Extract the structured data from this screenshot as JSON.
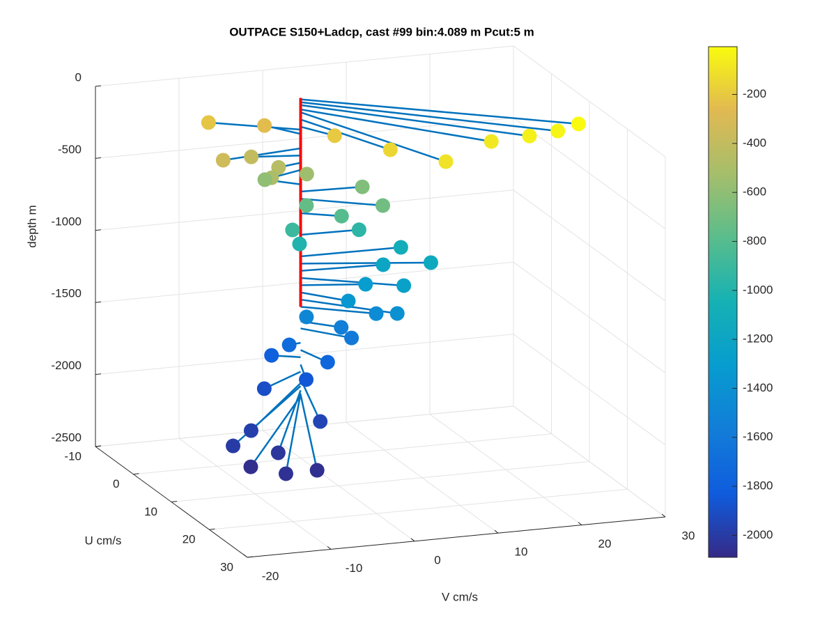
{
  "chart_data": {
    "type": "stem3",
    "title": "OUTPACE S150+Ladcp, cast #99 bin:4.089 m  Pcut:5 m",
    "xlabel": "U cm/s",
    "ylabel": "V cm/s",
    "zlabel": "depth m",
    "xlim": [
      -10,
      30
    ],
    "xticks": [
      -10,
      0,
      10,
      20,
      30
    ],
    "ylim": [
      -20,
      30
    ],
    "yticks": [
      -20,
      -10,
      0,
      10,
      20,
      30
    ],
    "zlim": [
      -2500,
      0
    ],
    "zticks": [
      -2500,
      -2000,
      -1500,
      -1000,
      -500,
      0
    ],
    "grid": true,
    "stem_color": "#0072bd",
    "colormap": "parula",
    "clim": [
      -2090,
      -5
    ],
    "cticks": [
      -2000,
      -1800,
      -1600,
      -1400,
      -1200,
      -1000,
      -800,
      -600,
      -400,
      -200
    ],
    "u": [
      16.4,
      17.1,
      16.9,
      16.1,
      20.2,
      12.4,
      3.9,
      -5.1,
      -3.8,
      1.4,
      -1.1,
      0.8,
      1.6,
      -0.8,
      -2.6,
      0.4,
      4.7,
      0.0,
      2.2,
      0.5,
      0.2,
      0.6,
      0.2,
      3.7,
      0.6,
      5.6,
      1.7,
      4.2,
      7.4,
      4.5,
      1.1,
      3.2,
      4.6,
      0.3,
      4.7,
      -1.5,
      5.0,
      4.3,
      14.2,
      13.6,
      17.0,
      19.2,
      25.2,
      24.6,
      21.0
    ],
    "v": [
      25.8,
      23.0,
      19.7,
      15.5,
      8.2,
      5.1,
      2.3,
      -8.7,
      -2.6,
      -9.9,
      -5.4,
      -3.0,
      -4.2,
      1.1,
      -3.1,
      7.2,
      7.7,
      0.7,
      3.9,
      -1.2,
      6.9,
      -0.4,
      11.9,
      13.9,
      9.6,
      9.8,
      7.0,
      3.8,
      8.2,
      7.0,
      0.2,
      3.4,
      4.0,
      -1.5,
      1.1,
      -2.8,
      -1.6,
      -6.3,
      -4.1,
      -12.1,
      -15.8,
      -11.4,
      -13.2,
      -9.2,
      -15.5
    ],
    "z": [
      -10,
      -30,
      -50,
      -80,
      -100,
      -150,
      -200,
      -220,
      -250,
      -350,
      -400,
      -450,
      -500,
      -550,
      -600,
      -650,
      -700,
      -750,
      -800,
      -900,
      -950,
      -1000,
      -1100,
      -1150,
      -1200,
      -1250,
      -1300,
      -1350,
      -1400,
      -1450,
      -1500,
      -1550,
      -1600,
      -1700,
      -1750,
      -1800,
      -1850,
      -1900,
      -1950,
      -1980,
      -2000,
      -2030,
      -2050,
      -2060,
      -2070
    ],
    "reference_line": {
      "color": "#ff0000",
      "u": [
        0,
        0
      ],
      "v": [
        0,
        0
      ],
      "z": [
        0,
        -1450
      ]
    }
  }
}
